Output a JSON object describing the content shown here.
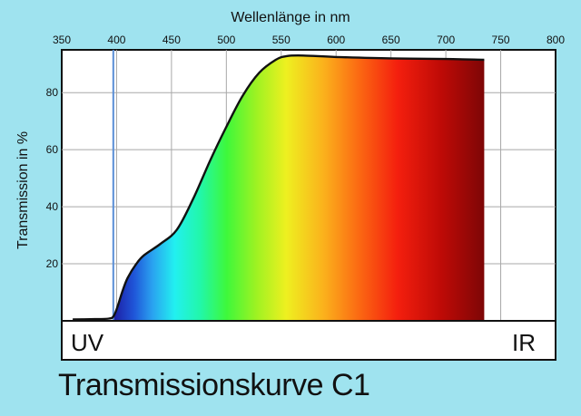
{
  "chart_data": {
    "type": "area",
    "title": "Transmissionskurve C1",
    "xlabel": "Wellenlänge in nm",
    "ylabel": "Transmission in %",
    "xlim": [
      350,
      800
    ],
    "ylim": [
      0,
      95
    ],
    "x_ticks": [
      350,
      400,
      450,
      500,
      550,
      600,
      650,
      700,
      750,
      800
    ],
    "y_ticks": [
      20,
      40,
      60,
      80
    ],
    "grid": true,
    "x_axis_position": "top",
    "fill": "visible-spectrum gradient under curve",
    "reference_line_x": 397,
    "reference_line_color": "#5b8fd6",
    "series": [
      {
        "x": [
          360,
          380,
          393,
          397,
          400,
          405,
          410,
          418,
          425,
          440,
          455,
          470,
          485,
          500,
          515,
          530,
          545,
          555,
          570,
          600,
          650,
          700,
          735
        ],
        "values": [
          0.5,
          0.6,
          0.8,
          1.5,
          4,
          10,
          15,
          20,
          23,
          27,
          32,
          43,
          56,
          68,
          79,
          87,
          91.5,
          92.8,
          93,
          92.5,
          92,
          91.8,
          91.5
        ]
      }
    ],
    "region_labels": {
      "left": "UV",
      "right": "IR"
    }
  }
}
